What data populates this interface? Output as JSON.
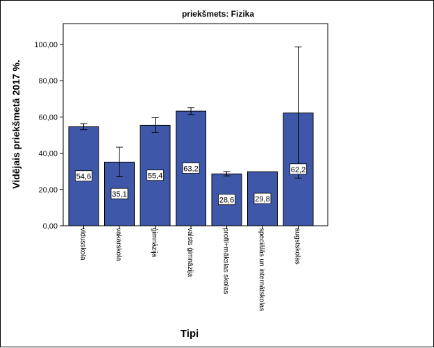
{
  "chart_data": {
    "type": "bar",
    "title": "priekšmets: Fizika",
    "xlabel": "Tipi",
    "ylabel": "Vidējais priekšmetā 2017 %.",
    "ylim": [
      0,
      110
    ],
    "yticks": [
      "0,00",
      "20,00",
      "40,00",
      "60,00",
      "80,00",
      "100,00"
    ],
    "ytick_values": [
      0,
      20,
      40,
      60,
      80,
      100
    ],
    "grid": false,
    "legend": "none",
    "categories": [
      "vidusskola",
      "vakarskola",
      "ģimnāzija",
      "valsts ģimnāzija",
      "profil+mākslas skolas",
      "speciālās un internātskolas",
      "augstskolas"
    ],
    "values": [
      54.6,
      35.1,
      55.4,
      63.2,
      28.6,
      29.8,
      62.2
    ],
    "value_labels": [
      "54,6",
      "35,1",
      "55,4",
      "63,2",
      "28,6",
      "29,8",
      "62,2"
    ],
    "error_low": [
      53.0,
      27.0,
      51.5,
      61.3,
      27.5,
      null,
      26.3
    ],
    "error_high": [
      56.3,
      43.3,
      59.6,
      65.2,
      29.9,
      null,
      98.6
    ],
    "bar_color": "#3f57a8"
  }
}
